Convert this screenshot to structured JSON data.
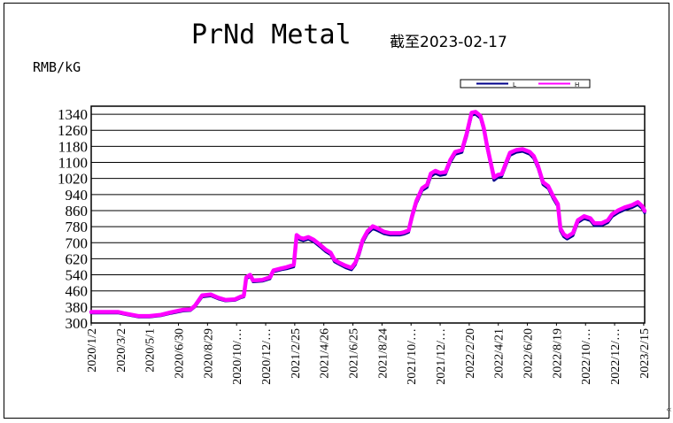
{
  "header": {
    "title": "PrNd Metal",
    "subtitle": "截至2023-02-17",
    "unit": "RMB/kG",
    "corner_mark": "«"
  },
  "colors": {
    "low_series": "#00008b",
    "high_series": "#ff00ff",
    "grid": "#000000",
    "background": "#ffffff"
  },
  "chart_data": {
    "type": "line",
    "title": "PrNd Metal",
    "subtitle": "截至2023-02-17",
    "ylabel": "RMB/kG",
    "xlabel": "",
    "ylim": [
      300,
      1380
    ],
    "yticks": [
      300,
      380,
      460,
      540,
      620,
      700,
      780,
      860,
      940,
      1020,
      1100,
      1180,
      1260,
      1340
    ],
    "xlim": [
      "2020-01-02",
      "2023-02-17"
    ],
    "xticks": [
      {
        "label": "2020/1/2",
        "date": "2020-01-02"
      },
      {
        "label": "2020/3/2",
        "date": "2020-03-02"
      },
      {
        "label": "2020/5/1",
        "date": "2020-05-01"
      },
      {
        "label": "2020/6/30",
        "date": "2020-06-30"
      },
      {
        "label": "2020/8/29",
        "date": "2020-08-29"
      },
      {
        "label": "2020/10/…",
        "date": "2020-10-28"
      },
      {
        "label": "2020/12/…",
        "date": "2020-12-27"
      },
      {
        "label": "2021/2/25",
        "date": "2021-02-25"
      },
      {
        "label": "2021/4/26",
        "date": "2021-04-26"
      },
      {
        "label": "2021/6/25",
        "date": "2021-06-25"
      },
      {
        "label": "2021/8/24",
        "date": "2021-08-24"
      },
      {
        "label": "2021/10/…",
        "date": "2021-10-23"
      },
      {
        "label": "2021/12/…",
        "date": "2021-12-22"
      },
      {
        "label": "2022/2/20",
        "date": "2022-02-20"
      },
      {
        "label": "2022/4/21",
        "date": "2022-04-21"
      },
      {
        "label": "2022/6/20",
        "date": "2022-06-20"
      },
      {
        "label": "2022/8/19",
        "date": "2022-08-19"
      },
      {
        "label": "2022/10/…",
        "date": "2022-10-18"
      },
      {
        "label": "2022/12/…",
        "date": "2022-12-17"
      },
      {
        "label": "2023/2/15",
        "date": "2023-02-15"
      }
    ],
    "grid": true,
    "legend_position": "top-right",
    "series": [
      {
        "name": "L",
        "color": "#00008b",
        "points": [
          [
            "2020-01-02",
            350
          ],
          [
            "2020-02-27",
            350
          ],
          [
            "2020-03-10",
            343
          ],
          [
            "2020-04-08",
            330
          ],
          [
            "2020-05-01",
            330
          ],
          [
            "2020-05-25",
            336
          ],
          [
            "2020-06-15",
            348
          ],
          [
            "2020-07-10",
            360
          ],
          [
            "2020-07-25",
            362
          ],
          [
            "2020-08-03",
            380
          ],
          [
            "2020-08-18",
            430
          ],
          [
            "2020-09-05",
            435
          ],
          [
            "2020-09-20",
            420
          ],
          [
            "2020-10-05",
            410
          ],
          [
            "2020-10-25",
            413
          ],
          [
            "2020-11-05",
            425
          ],
          [
            "2020-11-12",
            430
          ],
          [
            "2020-11-17",
            520
          ],
          [
            "2020-11-25",
            532
          ],
          [
            "2020-12-01",
            505
          ],
          [
            "2020-12-20",
            508
          ],
          [
            "2021-01-05",
            520
          ],
          [
            "2021-01-12",
            555
          ],
          [
            "2021-01-28",
            565
          ],
          [
            "2021-02-08",
            570
          ],
          [
            "2021-02-23",
            580
          ],
          [
            "2021-03-01",
            725
          ],
          [
            "2021-03-08",
            715
          ],
          [
            "2021-03-15",
            710
          ],
          [
            "2021-03-25",
            718
          ],
          [
            "2021-04-05",
            705
          ],
          [
            "2021-04-18",
            680
          ],
          [
            "2021-04-30",
            655
          ],
          [
            "2021-05-10",
            640
          ],
          [
            "2021-05-18",
            605
          ],
          [
            "2021-05-28",
            592
          ],
          [
            "2021-06-10",
            575
          ],
          [
            "2021-06-22",
            565
          ],
          [
            "2021-06-30",
            590
          ],
          [
            "2021-07-08",
            640
          ],
          [
            "2021-07-15",
            700
          ],
          [
            "2021-07-25",
            745
          ],
          [
            "2021-08-05",
            770
          ],
          [
            "2021-08-15",
            760
          ],
          [
            "2021-08-28",
            745
          ],
          [
            "2021-09-10",
            738
          ],
          [
            "2021-09-20",
            738
          ],
          [
            "2021-09-30",
            738
          ],
          [
            "2021-10-08",
            742
          ],
          [
            "2021-10-18",
            752
          ],
          [
            "2021-10-25",
            820
          ],
          [
            "2021-11-03",
            895
          ],
          [
            "2021-11-15",
            960
          ],
          [
            "2021-11-25",
            975
          ],
          [
            "2021-12-03",
            1030
          ],
          [
            "2021-12-12",
            1045
          ],
          [
            "2021-12-22",
            1035
          ],
          [
            "2022-01-02",
            1040
          ],
          [
            "2022-01-12",
            1100
          ],
          [
            "2022-01-22",
            1140
          ],
          [
            "2022-02-05",
            1150
          ],
          [
            "2022-02-15",
            1230
          ],
          [
            "2022-02-25",
            1335
          ],
          [
            "2022-03-05",
            1340
          ],
          [
            "2022-03-15",
            1320
          ],
          [
            "2022-03-22",
            1260
          ],
          [
            "2022-03-28",
            1180
          ],
          [
            "2022-04-05",
            1090
          ],
          [
            "2022-04-12",
            1010
          ],
          [
            "2022-04-20",
            1025
          ],
          [
            "2022-04-28",
            1030
          ],
          [
            "2022-05-06",
            1080
          ],
          [
            "2022-05-15",
            1135
          ],
          [
            "2022-05-28",
            1150
          ],
          [
            "2022-06-10",
            1155
          ],
          [
            "2022-06-25",
            1140
          ],
          [
            "2022-07-03",
            1120
          ],
          [
            "2022-07-12",
            1070
          ],
          [
            "2022-07-22",
            990
          ],
          [
            "2022-08-02",
            970
          ],
          [
            "2022-08-12",
            920
          ],
          [
            "2022-08-22",
            880
          ],
          [
            "2022-08-27",
            760
          ],
          [
            "2022-09-03",
            730
          ],
          [
            "2022-09-10",
            718
          ],
          [
            "2022-09-22",
            735
          ],
          [
            "2022-10-02",
            800
          ],
          [
            "2022-10-15",
            820
          ],
          [
            "2022-10-28",
            810
          ],
          [
            "2022-11-05",
            785
          ],
          [
            "2022-11-20",
            785
          ],
          [
            "2022-12-03",
            800
          ],
          [
            "2022-12-12",
            830
          ],
          [
            "2022-12-25",
            850
          ],
          [
            "2023-01-08",
            865
          ],
          [
            "2023-01-22",
            875
          ],
          [
            "2023-02-03",
            890
          ],
          [
            "2023-02-12",
            870
          ],
          [
            "2023-02-17",
            848
          ]
        ]
      },
      {
        "name": "H",
        "color": "#ff00ff",
        "points": [
          [
            "2020-01-02",
            355
          ],
          [
            "2020-02-27",
            355
          ],
          [
            "2020-03-10",
            348
          ],
          [
            "2020-04-08",
            335
          ],
          [
            "2020-05-01",
            335
          ],
          [
            "2020-05-25",
            341
          ],
          [
            "2020-06-15",
            354
          ],
          [
            "2020-07-10",
            366
          ],
          [
            "2020-07-25",
            368
          ],
          [
            "2020-08-03",
            386
          ],
          [
            "2020-08-18",
            438
          ],
          [
            "2020-09-05",
            442
          ],
          [
            "2020-09-20",
            426
          ],
          [
            "2020-10-05",
            415
          ],
          [
            "2020-10-25",
            418
          ],
          [
            "2020-11-05",
            431
          ],
          [
            "2020-11-12",
            436
          ],
          [
            "2020-11-17",
            528
          ],
          [
            "2020-11-25",
            540
          ],
          [
            "2020-12-01",
            512
          ],
          [
            "2020-12-20",
            515
          ],
          [
            "2021-01-05",
            528
          ],
          [
            "2021-01-12",
            562
          ],
          [
            "2021-01-28",
            572
          ],
          [
            "2021-02-08",
            578
          ],
          [
            "2021-02-23",
            590
          ],
          [
            "2021-03-01",
            738
          ],
          [
            "2021-03-08",
            725
          ],
          [
            "2021-03-15",
            720
          ],
          [
            "2021-03-25",
            728
          ],
          [
            "2021-04-05",
            715
          ],
          [
            "2021-04-18",
            690
          ],
          [
            "2021-04-30",
            665
          ],
          [
            "2021-05-10",
            650
          ],
          [
            "2021-05-18",
            615
          ],
          [
            "2021-05-28",
            600
          ],
          [
            "2021-06-10",
            585
          ],
          [
            "2021-06-22",
            575
          ],
          [
            "2021-06-30",
            600
          ],
          [
            "2021-07-08",
            652
          ],
          [
            "2021-07-15",
            712
          ],
          [
            "2021-07-25",
            757
          ],
          [
            "2021-08-05",
            782
          ],
          [
            "2021-08-15",
            772
          ],
          [
            "2021-08-28",
            755
          ],
          [
            "2021-09-10",
            748
          ],
          [
            "2021-09-20",
            748
          ],
          [
            "2021-09-30",
            748
          ],
          [
            "2021-10-08",
            752
          ],
          [
            "2021-10-18",
            762
          ],
          [
            "2021-10-25",
            832
          ],
          [
            "2021-11-03",
            908
          ],
          [
            "2021-11-15",
            972
          ],
          [
            "2021-11-25",
            988
          ],
          [
            "2021-12-03",
            1045
          ],
          [
            "2021-12-12",
            1058
          ],
          [
            "2021-12-22",
            1048
          ],
          [
            "2022-01-02",
            1052
          ],
          [
            "2022-01-12",
            1112
          ],
          [
            "2022-01-22",
            1152
          ],
          [
            "2022-02-05",
            1162
          ],
          [
            "2022-02-15",
            1245
          ],
          [
            "2022-02-25",
            1348
          ],
          [
            "2022-03-05",
            1352
          ],
          [
            "2022-03-15",
            1332
          ],
          [
            "2022-03-22",
            1272
          ],
          [
            "2022-03-28",
            1192
          ],
          [
            "2022-04-05",
            1102
          ],
          [
            "2022-04-12",
            1025
          ],
          [
            "2022-04-20",
            1038
          ],
          [
            "2022-04-28",
            1042
          ],
          [
            "2022-05-06",
            1092
          ],
          [
            "2022-05-15",
            1148
          ],
          [
            "2022-05-28",
            1162
          ],
          [
            "2022-06-10",
            1166
          ],
          [
            "2022-06-25",
            1152
          ],
          [
            "2022-07-03",
            1132
          ],
          [
            "2022-07-12",
            1082
          ],
          [
            "2022-07-22",
            1002
          ],
          [
            "2022-08-02",
            982
          ],
          [
            "2022-08-12",
            932
          ],
          [
            "2022-08-22",
            892
          ],
          [
            "2022-08-27",
            772
          ],
          [
            "2022-09-03",
            742
          ],
          [
            "2022-09-10",
            730
          ],
          [
            "2022-09-22",
            748
          ],
          [
            "2022-10-02",
            812
          ],
          [
            "2022-10-15",
            832
          ],
          [
            "2022-10-28",
            822
          ],
          [
            "2022-11-05",
            797
          ],
          [
            "2022-11-20",
            797
          ],
          [
            "2022-12-03",
            812
          ],
          [
            "2022-12-12",
            842
          ],
          [
            "2022-12-25",
            862
          ],
          [
            "2023-01-08",
            877
          ],
          [
            "2023-01-22",
            887
          ],
          [
            "2023-02-03",
            902
          ],
          [
            "2023-02-12",
            882
          ],
          [
            "2023-02-17",
            858
          ]
        ]
      }
    ]
  }
}
